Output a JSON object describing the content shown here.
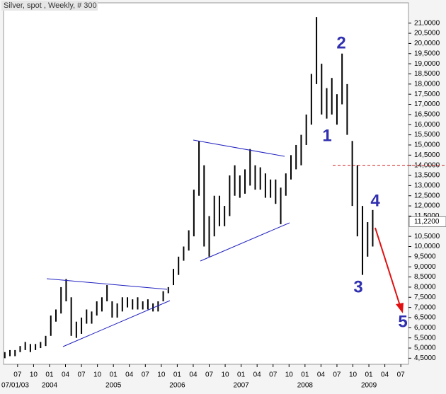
{
  "chart_data": {
    "type": "range-bar",
    "title": "Silver, spot , Weekly, # 300",
    "color": "#000000",
    "x": [
      2003.3,
      2003.38,
      2003.46,
      2003.54,
      2003.62,
      2003.7,
      2003.78,
      2003.86,
      2003.94,
      2004.02,
      2004.1,
      2004.18,
      2004.26,
      2004.34,
      2004.42,
      2004.5,
      2004.58,
      2004.66,
      2004.74,
      2004.82,
      2004.9,
      2004.98,
      2005.06,
      2005.14,
      2005.22,
      2005.3,
      2005.38,
      2005.46,
      2005.54,
      2005.62,
      2005.7,
      2005.78,
      2005.86,
      2005.94,
      2006.02,
      2006.1,
      2006.18,
      2006.26,
      2006.34,
      2006.42,
      2006.5,
      2006.58,
      2006.66,
      2006.74,
      2006.82,
      2006.9,
      2006.98,
      2007.06,
      2007.14,
      2007.22,
      2007.3,
      2007.38,
      2007.46,
      2007.54,
      2007.62,
      2007.7,
      2007.78,
      2007.86,
      2007.94,
      2008.02,
      2008.1,
      2008.18,
      2008.26,
      2008.34,
      2008.42,
      2008.5,
      2008.58,
      2008.66,
      2008.74,
      2008.82,
      2008.9,
      2008.98,
      2009.06
    ],
    "low": [
      4.5,
      4.6,
      4.6,
      4.8,
      4.9,
      4.8,
      4.9,
      5.0,
      5.1,
      5.6,
      6.3,
      6.7,
      7.3,
      5.6,
      5.5,
      5.7,
      6.2,
      6.2,
      6.6,
      6.8,
      7.3,
      6.5,
      6.5,
      6.8,
      7.0,
      6.9,
      6.9,
      6.9,
      6.9,
      6.8,
      6.8,
      7.3,
      7.7,
      8.1,
      8.6,
      9.3,
      9.8,
      10.5,
      12.5,
      10.0,
      9.5,
      10.5,
      11.0,
      11.0,
      11.5,
      12.5,
      12.4,
      12.6,
      13.0,
      12.8,
      12.8,
      12.4,
      12.4,
      12.1,
      11.1,
      12.5,
      13.3,
      13.8,
      14.0,
      15.0,
      16.0,
      18.0,
      16.5,
      16.3,
      16.5,
      16.0,
      17.0,
      15.5,
      12.0,
      10.5,
      8.6,
      9.5,
      10.0
    ],
    "high": [
      4.8,
      4.9,
      4.9,
      5.1,
      5.3,
      5.2,
      5.2,
      5.3,
      5.6,
      6.6,
      6.9,
      8.0,
      8.4,
      7.5,
      6.3,
      6.5,
      6.9,
      6.8,
      7.3,
      7.5,
      8.1,
      7.3,
      7.2,
      7.5,
      7.5,
      7.4,
      7.5,
      7.3,
      7.4,
      7.2,
      7.3,
      7.8,
      8.0,
      8.9,
      9.5,
      10.0,
      10.8,
      12.8,
      15.2,
      14.0,
      11.5,
      12.5,
      12.5,
      12.0,
      13.5,
      14.0,
      13.5,
      13.8,
      14.8,
      14.0,
      13.9,
      13.6,
      13.3,
      13.3,
      12.9,
      13.6,
      14.5,
      15.0,
      15.5,
      16.5,
      18.5,
      21.3,
      19.0,
      17.8,
      18.3,
      17.5,
      19.5,
      18.0,
      15.2,
      14.0,
      12.0,
      11.2,
      11.8
    ],
    "last_price": {
      "value": 11.22,
      "label": "11,2200"
    },
    "reference_line": 14.0,
    "annotations": [
      "1",
      "2",
      "3",
      "4",
      "5"
    ],
    "xlim": [
      2003.28,
      2009.62
    ],
    "ylim": [
      4.2,
      22.0
    ],
    "start_label": "07/01/03",
    "xticks": [
      {
        "value": 2003.5,
        "label": "07"
      },
      {
        "value": 2003.75,
        "label": "10"
      },
      {
        "value": 2004.0,
        "label": "01"
      },
      {
        "value": 2004.25,
        "label": "04"
      },
      {
        "value": 2004.5,
        "label": "07"
      },
      {
        "value": 2004.75,
        "label": "10"
      },
      {
        "value": 2005.0,
        "label": "01"
      },
      {
        "value": 2005.25,
        "label": "04"
      },
      {
        "value": 2005.5,
        "label": "07"
      },
      {
        "value": 2005.75,
        "label": "10"
      },
      {
        "value": 2006.0,
        "label": "01"
      },
      {
        "value": 2006.25,
        "label": "04"
      },
      {
        "value": 2006.5,
        "label": "07"
      },
      {
        "value": 2006.75,
        "label": "10"
      },
      {
        "value": 2007.0,
        "label": "01"
      },
      {
        "value": 2007.25,
        "label": "04"
      },
      {
        "value": 2007.5,
        "label": "07"
      },
      {
        "value": 2007.75,
        "label": "10"
      },
      {
        "value": 2008.0,
        "label": "01"
      },
      {
        "value": 2008.25,
        "label": "04"
      },
      {
        "value": 2008.5,
        "label": "07"
      },
      {
        "value": 2008.75,
        "label": "10"
      },
      {
        "value": 2009.0,
        "label": "01"
      },
      {
        "value": 2009.25,
        "label": "04"
      },
      {
        "value": 2009.5,
        "label": "07"
      }
    ],
    "year_ticks": [
      2004,
      2005,
      2006,
      2007,
      2008,
      2009
    ],
    "yticks": [
      {
        "value": 4.5,
        "label": "4,5000"
      },
      {
        "value": 5.0,
        "label": "5,0000"
      },
      {
        "value": 5.5,
        "label": "5,5000"
      },
      {
        "value": 6.0,
        "label": "6,0000"
      },
      {
        "value": 6.5,
        "label": "6,5000"
      },
      {
        "value": 7.0,
        "label": "7,0000"
      },
      {
        "value": 7.5,
        "label": "7,5000"
      },
      {
        "value": 8.0,
        "label": "8,0000"
      },
      {
        "value": 8.5,
        "label": "8,5000"
      },
      {
        "value": 9.0,
        "label": "9,0000"
      },
      {
        "value": 9.5,
        "label": "9,5000"
      },
      {
        "value": 10.0,
        "label": "10,0000"
      },
      {
        "value": 10.5,
        "label": "10,5000"
      },
      {
        "value": 11.5,
        "label": "11,5000"
      },
      {
        "value": 12.0,
        "label": "12,0000"
      },
      {
        "value": 12.5,
        "label": "12,5000"
      },
      {
        "value": 13.0,
        "label": "13,0000"
      },
      {
        "value": 13.5,
        "label": "13,5000"
      },
      {
        "value": 14.0,
        "label": "14,0000"
      },
      {
        "value": 14.5,
        "label": "14,5000"
      },
      {
        "value": 15.0,
        "label": "15,0000"
      },
      {
        "value": 15.5,
        "label": "15,5000"
      },
      {
        "value": 16.0,
        "label": "16,0000"
      },
      {
        "value": 16.5,
        "label": "16,5000"
      },
      {
        "value": 17.0,
        "label": "17,0000"
      },
      {
        "value": 17.5,
        "label": "17,5000"
      },
      {
        "value": 18.0,
        "label": "18,0000"
      },
      {
        "value": 18.5,
        "label": "18,5000"
      },
      {
        "value": 19.0,
        "label": "19,0000"
      },
      {
        "value": 19.5,
        "label": "19,5000"
      },
      {
        "value": 20.0,
        "label": "20,0000"
      },
      {
        "value": 20.5,
        "label": "20,5000"
      },
      {
        "value": 21.0,
        "label": "21,0000"
      }
    ]
  }
}
